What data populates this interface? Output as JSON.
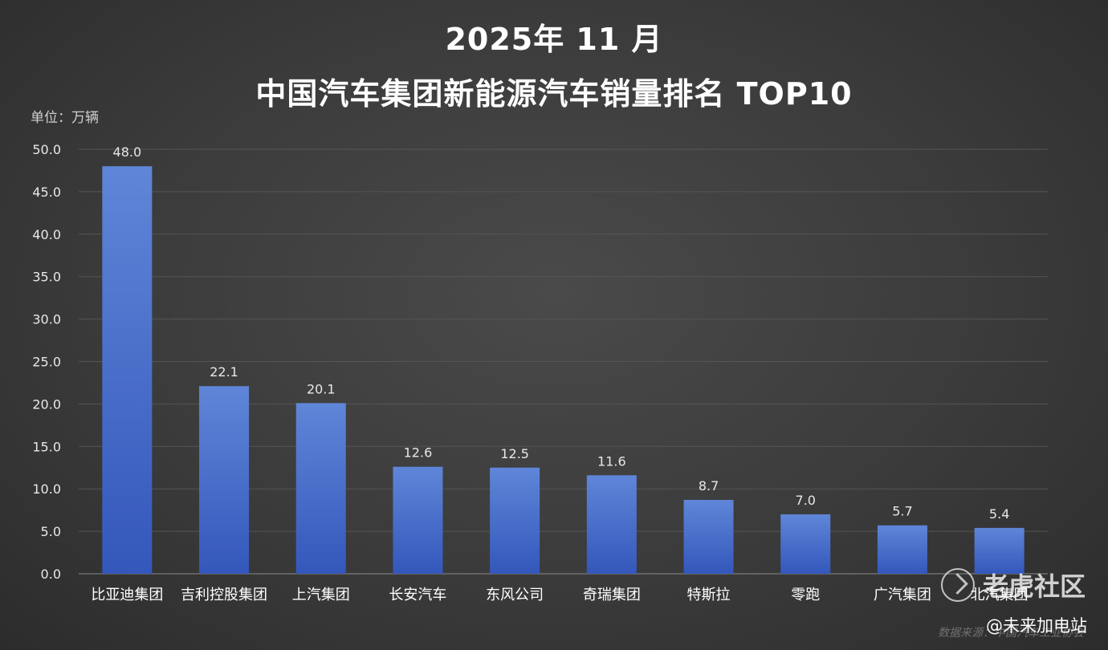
{
  "title_line1": "2025年 11 月",
  "title_line2": "中国汽车集团新能源汽车销量排名   TOP10",
  "unit_label": "单位：万辆",
  "watermark": {
    "brand": "老虎社区",
    "author": "@未来加电站",
    "source": "数据来源：中国汽车工业协会"
  },
  "colors": {
    "bar_top": "#5f86d8",
    "bar_bottom": "#3457bb",
    "grid": "#555555",
    "axis_text": "#e8e8e8"
  },
  "chart_data": {
    "type": "bar",
    "title": "2025年 11 月 中国汽车集团新能源汽车销量排名 TOP10",
    "ylabel": "单位：万辆",
    "xlabel": "",
    "categories": [
      "比亚迪集团",
      "吉利控股集团",
      "上汽集团",
      "长安汽车",
      "东风公司",
      "奇瑞集团",
      "特斯拉",
      "零跑",
      "广汽集团",
      "北汽集团"
    ],
    "values": [
      48.0,
      22.1,
      20.1,
      12.6,
      12.5,
      11.6,
      8.7,
      7.0,
      5.7,
      5.4
    ],
    "value_labels": [
      "48.0",
      "22.1",
      "20.1",
      "12.6",
      "12.5",
      "11.6",
      "8.7",
      "7.0",
      "5.7",
      "5.4"
    ],
    "ylim": [
      0,
      50
    ],
    "yticks": [
      "0.0",
      "5.0",
      "10.0",
      "15.0",
      "20.0",
      "25.0",
      "30.0",
      "35.0",
      "40.0",
      "45.0",
      "50.0"
    ],
    "grid": true,
    "legend": "none"
  }
}
